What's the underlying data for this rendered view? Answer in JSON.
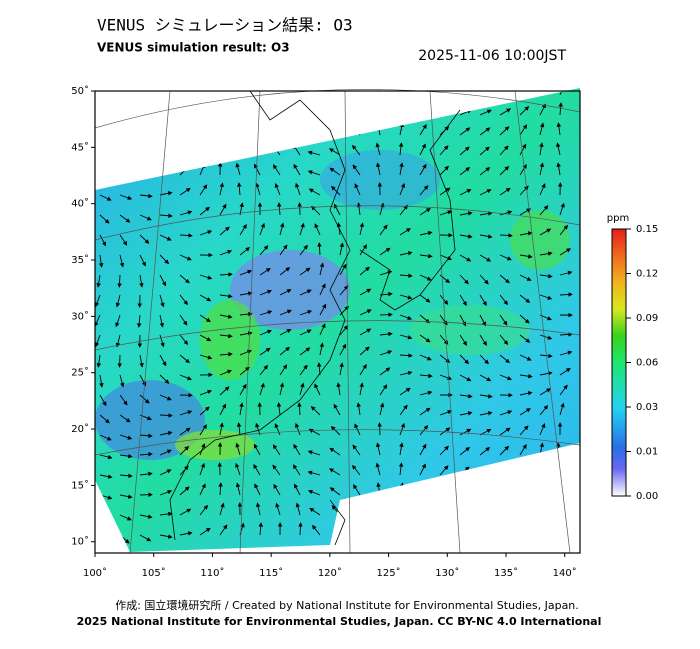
{
  "header": {
    "title": "VENUS シミュレーション結果: O3",
    "subtitle": "VENUS simulation result: O3",
    "timestamp": "2025-11-06 10:00JST"
  },
  "map": {
    "lat_ticks": [
      {
        "value": 50,
        "label": "50˚"
      },
      {
        "value": 45,
        "label": "45˚"
      },
      {
        "value": 40,
        "label": "40˚"
      },
      {
        "value": 35,
        "label": "35˚"
      },
      {
        "value": 30,
        "label": "30˚"
      },
      {
        "value": 25,
        "label": "25˚"
      },
      {
        "value": 20,
        "label": "20˚"
      },
      {
        "value": 15,
        "label": "15˚"
      },
      {
        "value": 10,
        "label": "10˚"
      }
    ],
    "lon_ticks": [
      {
        "value": 100,
        "label": "100˚"
      },
      {
        "value": 105,
        "label": "105˚"
      },
      {
        "value": 110,
        "label": "110˚"
      },
      {
        "value": 115,
        "label": "115˚"
      },
      {
        "value": 120,
        "label": "120˚"
      },
      {
        "value": 125,
        "label": "125˚"
      },
      {
        "value": 130,
        "label": "130˚"
      },
      {
        "value": 135,
        "label": "135˚"
      },
      {
        "value": 140,
        "label": "140˚"
      }
    ],
    "xlim": [
      100,
      141.3
    ],
    "ylim": [
      9,
      50
    ]
  },
  "colorbar": {
    "unit": "ppm",
    "ticks": [
      0.15,
      0.12,
      0.09,
      0.06,
      0.03,
      0.01,
      {
        "value": 0,
        "label": "0.00"
      }
    ]
  },
  "footer": {
    "line1": "作成: 国立環境研究所 / Created by National Institute for Environmental Studies, Japan.",
    "line2": "2025 National Institute for Environmental Studies, Japan. CC BY-NC 4.0 International"
  }
}
